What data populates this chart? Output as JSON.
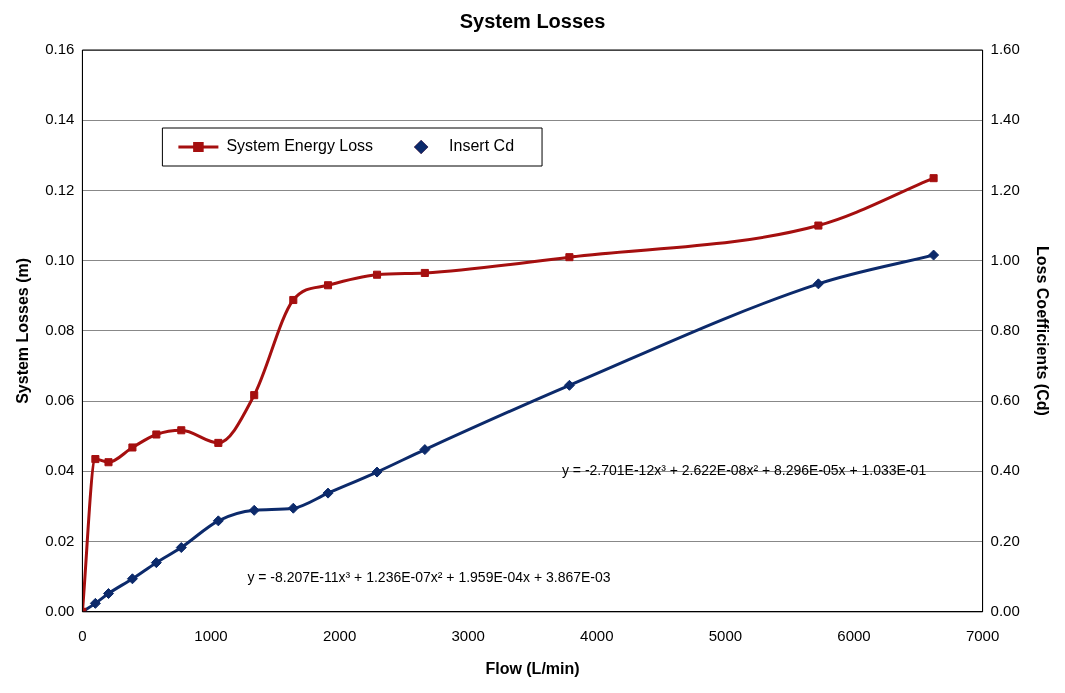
{
  "chart_data": {
    "type": "line",
    "title": "System Losses",
    "xlabel": "Flow (L/min)",
    "ylabel": "System Losses (m)",
    "y2label": "Loss Coefficients (Cd)",
    "x": [
      0,
      101,
      203,
      389,
      575,
      769,
      1057,
      1336,
      1640,
      1910,
      2291,
      2663,
      3787,
      5723,
      6619
    ],
    "series": [
      {
        "name": "System Energy Loss",
        "color": "#a50f0f",
        "marker": "square",
        "values": [
          0,
          0.0435,
          0.0426,
          0.0468,
          0.0505,
          0.0517,
          0.0481,
          0.0617,
          0.0888,
          0.093,
          0.096,
          0.0965,
          0.101,
          0.11,
          0.1235
        ]
      },
      {
        "name": "Insert Cd",
        "color": "#0c2a6b",
        "marker": "diamond",
        "axis": "y2",
        "values": [
          0,
          0.024,
          0.052,
          0.094,
          0.14,
          0.183,
          0.259,
          0.289,
          0.295,
          0.338,
          0.398,
          0.462,
          0.645,
          0.934,
          1.016
        ]
      }
    ],
    "xlim": [
      0,
      7000
    ],
    "xticks": [
      0,
      1000,
      2000,
      3000,
      4000,
      5000,
      6000,
      7000
    ],
    "ylim": [
      0,
      0.16
    ],
    "yticks": [
      {
        "value": 0,
        "label": "0.00"
      },
      {
        "value": 0.02,
        "label": "0.02"
      },
      {
        "value": 0.04,
        "label": "0.04"
      },
      {
        "value": 0.06,
        "label": "0.06"
      },
      {
        "value": 0.08,
        "label": "0.08"
      },
      {
        "value": 0.1,
        "label": "0.10"
      },
      {
        "value": 0.12,
        "label": "0.12"
      },
      {
        "value": 0.14,
        "label": "0.14"
      },
      {
        "value": 0.16,
        "label": "0.16"
      }
    ],
    "y2lim": [
      0,
      1.6
    ],
    "y2ticks": [
      {
        "value": 0,
        "label": "0.00"
      },
      {
        "value": 0.2,
        "label": "0.20"
      },
      {
        "value": 0.4,
        "label": "0.40"
      },
      {
        "value": 0.6,
        "label": "0.60"
      },
      {
        "value": 0.8,
        "label": "0.80"
      },
      {
        "value": 1,
        "label": "1.00"
      },
      {
        "value": 1.2,
        "label": "1.20"
      },
      {
        "value": 1.4,
        "label": "1.40"
      },
      {
        "value": 1.6,
        "label": "1.60"
      }
    ],
    "grid": "y",
    "legend": "top left",
    "line_style": "solid",
    "annotations": [
      "y = -8.207E-11x³ + 1.236E-07x² + 1.959E-04x + 3.867E-03",
      "y = -2.701E-12x³ + 2.622E-08x² + 8.296E-05x + 1.033E-01"
    ]
  }
}
